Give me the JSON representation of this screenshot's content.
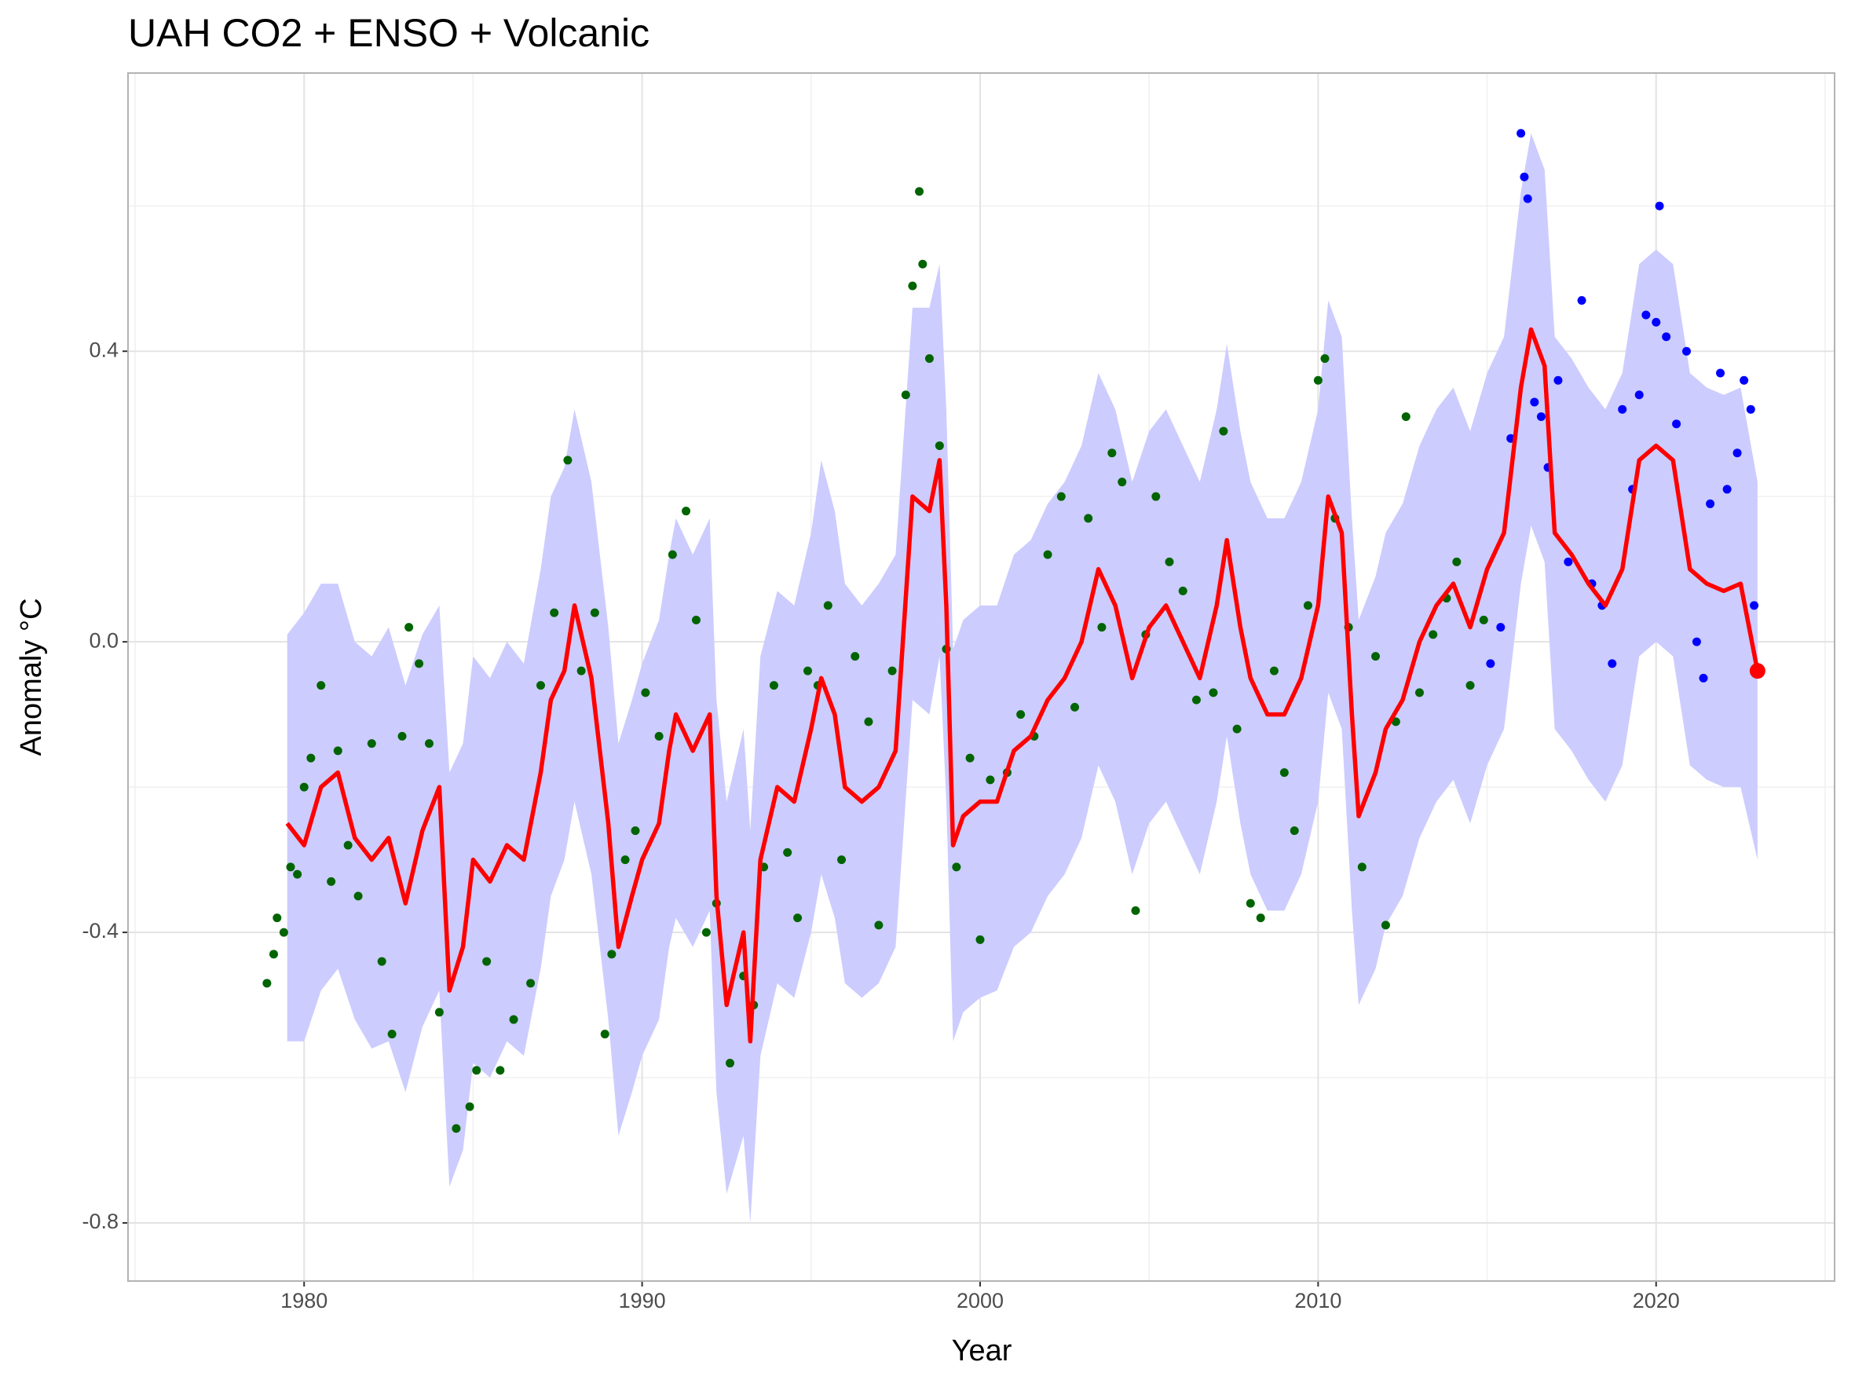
{
  "chart_data": {
    "type": "line",
    "title": "UAH CO2 + ENSO + Volcanic",
    "x_label": "Year",
    "y_label": "Anomaly °C",
    "xlim": [
      1974.79,
      2025.28
    ],
    "ylim": [
      -0.88,
      0.783
    ],
    "xticks": [
      1980,
      1990,
      2000,
      2010,
      2020
    ],
    "yticks": [
      -0.8,
      -0.4,
      {
        "value": 0,
        "label": "0.0"
      },
      0.4
    ],
    "grid": true,
    "ribbon": {
      "color": "#ccccff",
      "x": [
        1979.5,
        1980.0,
        1980.5,
        1981.0,
        1981.5,
        1982.0,
        1982.5,
        1983.0,
        1983.5,
        1984.0,
        1984.3,
        1984.7,
        1985.0,
        1985.5,
        1986.0,
        1986.5,
        1987.0,
        1987.3,
        1987.7,
        1988.0,
        1988.5,
        1989.0,
        1989.3,
        1989.7,
        1990.0,
        1990.5,
        1990.8,
        1991.0,
        1991.5,
        1992.0,
        1992.2,
        1992.5,
        1993.0,
        1993.2,
        1993.5,
        1994.0,
        1994.5,
        1995.0,
        1995.3,
        1995.7,
        1996.0,
        1996.5,
        1997.0,
        1997.5,
        1998.0,
        1998.5,
        1998.8,
        1999.0,
        1999.2,
        1999.5,
        2000.0,
        2000.5,
        2001.0,
        2001.5,
        2002.0,
        2002.5,
        2003.0,
        2003.5,
        2004.0,
        2004.5,
        2005.0,
        2005.5,
        2006.0,
        2006.5,
        2007.0,
        2007.3,
        2007.7,
        2008.0,
        2008.5,
        2009.0,
        2009.5,
        2010.0,
        2010.3,
        2010.7,
        2011.0,
        2011.2,
        2011.7,
        2012.0,
        2012.5,
        2013.0,
        2013.5,
        2014.0,
        2014.5,
        2015.0,
        2015.5,
        2016.0,
        2016.3,
        2016.7,
        2017.0,
        2017.5,
        2018.0,
        2018.5,
        2019.0,
        2019.5,
        2020.0,
        2020.5,
        2021.0,
        2021.5,
        2022.0,
        2022.5,
        2023.0
      ],
      "lower": [
        -0.55,
        -0.55,
        -0.48,
        -0.45,
        -0.52,
        -0.56,
        -0.55,
        -0.62,
        -0.53,
        -0.48,
        -0.75,
        -0.7,
        -0.58,
        -0.6,
        -0.55,
        -0.57,
        -0.45,
        -0.35,
        -0.3,
        -0.22,
        -0.32,
        -0.52,
        -0.68,
        -0.62,
        -0.57,
        -0.52,
        -0.42,
        -0.38,
        -0.42,
        -0.37,
        -0.62,
        -0.76,
        -0.68,
        -0.8,
        -0.57,
        -0.47,
        -0.49,
        -0.4,
        -0.32,
        -0.38,
        -0.47,
        -0.49,
        -0.47,
        -0.42,
        -0.08,
        -0.1,
        -0.02,
        -0.22,
        -0.55,
        -0.51,
        -0.49,
        -0.48,
        -0.42,
        -0.4,
        -0.35,
        -0.32,
        -0.27,
        -0.17,
        -0.22,
        -0.32,
        -0.25,
        -0.22,
        -0.27,
        -0.32,
        -0.22,
        -0.13,
        -0.25,
        -0.32,
        -0.37,
        -0.37,
        -0.32,
        -0.22,
        -0.07,
        -0.12,
        -0.37,
        -0.5,
        -0.45,
        -0.39,
        -0.35,
        -0.27,
        -0.22,
        -0.19,
        -0.25,
        -0.17,
        -0.12,
        0.08,
        0.16,
        0.11,
        -0.12,
        -0.15,
        -0.19,
        -0.22,
        -0.17,
        -0.02,
        0.0,
        -0.02,
        -0.17,
        -0.19,
        -0.2,
        -0.2,
        -0.3
      ],
      "upper": [
        0.01,
        0.04,
        0.08,
        0.08,
        0.0,
        -0.02,
        0.02,
        -0.06,
        0.01,
        0.05,
        -0.18,
        -0.14,
        -0.02,
        -0.05,
        0.0,
        -0.03,
        0.1,
        0.2,
        0.24,
        0.32,
        0.22,
        0.02,
        -0.14,
        -0.08,
        -0.03,
        0.03,
        0.12,
        0.17,
        0.12,
        0.17,
        -0.08,
        -0.22,
        -0.12,
        -0.26,
        -0.02,
        0.07,
        0.05,
        0.15,
        0.25,
        0.18,
        0.08,
        0.05,
        0.08,
        0.12,
        0.46,
        0.46,
        0.52,
        0.32,
        -0.01,
        0.03,
        0.05,
        0.05,
        0.12,
        0.14,
        0.19,
        0.22,
        0.27,
        0.37,
        0.32,
        0.22,
        0.29,
        0.32,
        0.27,
        0.22,
        0.32,
        0.41,
        0.29,
        0.22,
        0.17,
        0.17,
        0.22,
        0.32,
        0.47,
        0.42,
        0.17,
        0.03,
        0.09,
        0.15,
        0.19,
        0.27,
        0.32,
        0.35,
        0.29,
        0.37,
        0.42,
        0.62,
        0.7,
        0.65,
        0.42,
        0.39,
        0.35,
        0.32,
        0.37,
        0.52,
        0.54,
        0.52,
        0.37,
        0.35,
        0.34,
        0.35,
        0.22
      ]
    },
    "points": [
      {
        "color": "#006400",
        "x": [
          1978.9,
          1979.1,
          1979.2,
          1979.4,
          1979.6,
          1979.8,
          1980.0,
          1980.2,
          1980.5,
          1980.8,
          1981.0,
          1981.3,
          1981.6,
          1982.0,
          1982.3,
          1982.6,
          1982.9,
          1983.1,
          1983.4,
          1983.7,
          1984.0,
          1984.5,
          1984.9,
          1985.1,
          1985.4,
          1985.8,
          1986.2,
          1986.7,
          1987.0,
          1987.4,
          1987.8,
          1988.2,
          1988.6,
          1988.9,
          1989.1,
          1989.5,
          1989.8,
          1990.1,
          1990.5,
          1990.9,
          1991.3,
          1991.6,
          1991.9,
          1992.2,
          1992.6,
          1993.0,
          1993.3,
          1993.6,
          1993.9,
          1994.3,
          1994.6,
          1994.9,
          1995.2,
          1995.5,
          1995.9,
          1996.3,
          1996.7,
          1997.0,
          1997.4,
          1997.8,
          1998.0,
          1998.2,
          1998.3,
          1998.5,
          1998.8,
          1999.0,
          1999.3,
          1999.7,
          2000.0,
          2000.3,
          2000.8,
          2001.2,
          2001.6,
          2002.0,
          2002.4,
          2002.8,
          2003.2,
          2003.6,
          2003.9,
          2004.2,
          2004.6,
          2004.9,
          2005.2,
          2005.6,
          2006.0,
          2006.4,
          2006.9,
          2007.2,
          2007.6,
          2008.0,
          2008.3,
          2008.7,
          2009.0,
          2009.3,
          2009.7,
          2010.0,
          2010.2,
          2010.5,
          2010.9,
          2011.3,
          2011.7,
          2012.0,
          2012.3,
          2012.6,
          2013.0,
          2013.4,
          2013.8,
          2014.1,
          2014.5,
          2014.9
        ],
        "values": [
          -0.47,
          -0.43,
          -0.38,
          -0.4,
          -0.31,
          -0.32,
          -0.2,
          -0.16,
          -0.06,
          -0.33,
          -0.15,
          -0.28,
          -0.35,
          -0.14,
          -0.44,
          -0.54,
          -0.13,
          0.02,
          -0.03,
          -0.14,
          -0.51,
          -0.67,
          -0.64,
          -0.59,
          -0.44,
          -0.59,
          -0.52,
          -0.47,
          -0.06,
          0.04,
          0.25,
          -0.04,
          0.04,
          -0.54,
          -0.43,
          -0.3,
          -0.26,
          -0.07,
          -0.13,
          0.12,
          0.18,
          0.03,
          -0.4,
          -0.36,
          -0.58,
          -0.46,
          -0.5,
          -0.31,
          -0.06,
          -0.29,
          -0.38,
          -0.04,
          -0.06,
          0.05,
          -0.3,
          -0.02,
          -0.11,
          -0.39,
          -0.04,
          0.34,
          0.49,
          0.62,
          0.52,
          0.39,
          0.27,
          -0.01,
          -0.31,
          -0.16,
          -0.41,
          -0.19,
          -0.18,
          -0.1,
          -0.13,
          0.12,
          0.2,
          -0.09,
          0.17,
          0.02,
          0.26,
          0.22,
          -0.37,
          0.01,
          0.2,
          0.11,
          0.07,
          -0.08,
          -0.07,
          0.29,
          -0.12,
          -0.36,
          -0.38,
          -0.04,
          -0.18,
          -0.26,
          0.05,
          0.36,
          0.39,
          0.17,
          0.02,
          -0.31,
          -0.02,
          -0.39,
          -0.11,
          0.31,
          -0.07,
          0.01,
          0.06,
          0.11,
          -0.06,
          0.03
        ]
      },
      {
        "color": "#0000ff",
        "x": [
          2015.1,
          2015.4,
          2015.7,
          2016.0,
          2016.1,
          2016.2,
          2016.4,
          2016.6,
          2016.8,
          2017.1,
          2017.4,
          2017.8,
          2018.1,
          2018.4,
          2018.7,
          2019.0,
          2019.3,
          2019.5,
          2019.7,
          2020.0,
          2020.1,
          2020.3,
          2020.6,
          2020.9,
          2021.2,
          2021.4,
          2021.6,
          2021.9,
          2022.1,
          2022.4,
          2022.6,
          2022.8,
          2022.9
        ],
        "values": [
          -0.03,
          0.02,
          0.28,
          0.7,
          0.64,
          0.61,
          0.33,
          0.31,
          0.24,
          0.36,
          0.11,
          0.47,
          0.08,
          0.05,
          -0.03,
          0.32,
          0.21,
          0.34,
          0.45,
          0.44,
          0.6,
          0.42,
          0.3,
          0.4,
          0.0,
          -0.05,
          0.19,
          0.37,
          0.21,
          0.26,
          0.36,
          0.32,
          0.05
        ]
      }
    ],
    "line": {
      "color": "#ff0000",
      "x": [
        1979.5,
        1980.0,
        1980.5,
        1981.0,
        1981.5,
        1982.0,
        1982.5,
        1983.0,
        1983.5,
        1984.0,
        1984.3,
        1984.7,
        1985.0,
        1985.5,
        1986.0,
        1986.5,
        1987.0,
        1987.3,
        1987.7,
        1988.0,
        1988.5,
        1989.0,
        1989.3,
        1989.7,
        1990.0,
        1990.5,
        1990.8,
        1991.0,
        1991.5,
        1992.0,
        1992.2,
        1992.5,
        1993.0,
        1993.2,
        1993.5,
        1994.0,
        1994.5,
        1995.0,
        1995.3,
        1995.7,
        1996.0,
        1996.5,
        1997.0,
        1997.5,
        1998.0,
        1998.5,
        1998.8,
        1999.0,
        1999.2,
        1999.5,
        2000.0,
        2000.5,
        2001.0,
        2001.5,
        2002.0,
        2002.5,
        2003.0,
        2003.5,
        2004.0,
        2004.5,
        2005.0,
        2005.5,
        2006.0,
        2006.5,
        2007.0,
        2007.3,
        2007.7,
        2008.0,
        2008.5,
        2009.0,
        2009.5,
        2010.0,
        2010.3,
        2010.7,
        2011.0,
        2011.2,
        2011.7,
        2012.0,
        2012.5,
        2013.0,
        2013.5,
        2014.0,
        2014.5,
        2015.0,
        2015.5,
        2016.0,
        2016.3,
        2016.7,
        2017.0,
        2017.5,
        2018.0,
        2018.5,
        2019.0,
        2019.5,
        2020.0,
        2020.5,
        2021.0,
        2021.5,
        2022.0,
        2022.5,
        2023.0
      ],
      "values": [
        -0.25,
        -0.28,
        -0.2,
        -0.18,
        -0.27,
        -0.3,
        -0.27,
        -0.36,
        -0.26,
        -0.2,
        -0.48,
        -0.42,
        -0.3,
        -0.33,
        -0.28,
        -0.3,
        -0.18,
        -0.08,
        -0.04,
        0.05,
        -0.05,
        -0.25,
        -0.42,
        -0.35,
        -0.3,
        -0.25,
        -0.15,
        -0.1,
        -0.15,
        -0.1,
        -0.35,
        -0.5,
        -0.4,
        -0.55,
        -0.3,
        -0.2,
        -0.22,
        -0.12,
        -0.05,
        -0.1,
        -0.2,
        -0.22,
        -0.2,
        -0.15,
        0.2,
        0.18,
        0.25,
        0.05,
        -0.28,
        -0.24,
        -0.22,
        -0.22,
        -0.15,
        -0.13,
        -0.08,
        -0.05,
        0.0,
        0.1,
        0.05,
        -0.05,
        0.02,
        0.05,
        0.0,
        -0.05,
        0.05,
        0.14,
        0.02,
        -0.05,
        -0.1,
        -0.1,
        -0.05,
        0.05,
        0.2,
        0.15,
        -0.1,
        -0.24,
        -0.18,
        -0.12,
        -0.08,
        0.0,
        0.05,
        0.08,
        0.02,
        0.1,
        0.15,
        0.35,
        0.43,
        0.38,
        0.15,
        0.12,
        0.08,
        0.05,
        0.1,
        0.25,
        0.27,
        0.25,
        0.1,
        0.08,
        0.07,
        0.08,
        -0.04
      ]
    }
  }
}
